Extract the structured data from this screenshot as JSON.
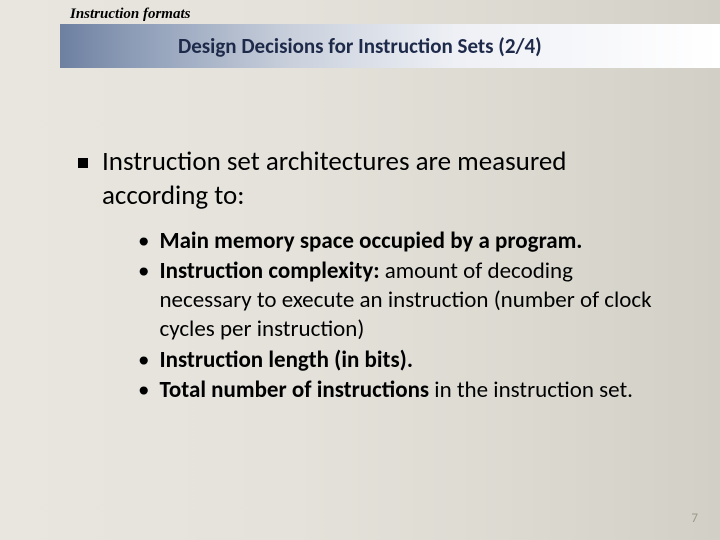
{
  "breadcrumb": "Instruction formats",
  "title": "Design Decisions for Instruction Sets (2/4)",
  "main_bullet": "Instruction set architectures are measured according to:",
  "sub_items": [
    {
      "bold": "Main memory space occupied by a program.",
      "rest": ""
    },
    {
      "bold": "Instruction complexity:",
      "rest": " amount of decoding necessary to execute an instruction (number of clock cycles per instruction)"
    },
    {
      "bold": "Instruction length (in bits).",
      "rest": ""
    },
    {
      "bold": "Total number of instructions",
      "rest": " in the instruction set."
    }
  ],
  "page_number": "7",
  "colors": {
    "title_text": "#1e2a4a",
    "page_num": "#9a978b",
    "bg_left": "#e8e6df",
    "bg_right": "#d2d0c6",
    "bar_left": "#6d80a0",
    "bar_right": "#ffffff"
  }
}
